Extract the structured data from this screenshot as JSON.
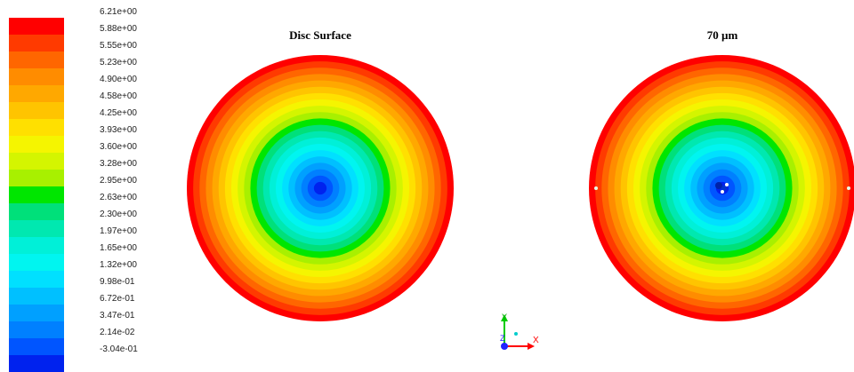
{
  "legend": {
    "labels": [
      "6.21e+00",
      "5.88e+00",
      "5.55e+00",
      "5.23e+00",
      "4.90e+00",
      "4.58e+00",
      "4.25e+00",
      "3.93e+00",
      "3.60e+00",
      "3.28e+00",
      "2.95e+00",
      "2.63e+00",
      "2.30e+00",
      "1.97e+00",
      "1.65e+00",
      "1.32e+00",
      "9.98e-01",
      "6.72e-01",
      "3.47e-01",
      "2.14e-02",
      "-3.04e-01"
    ],
    "colors": [
      "#ff0000",
      "#ff3a00",
      "#ff6600",
      "#ff8c00",
      "#ffa800",
      "#ffc400",
      "#ffe000",
      "#f5f500",
      "#d4f500",
      "#a8f000",
      "#00e600",
      "#00e07a",
      "#00e8b0",
      "#00f0d8",
      "#00f5f0",
      "#00e0ff",
      "#00c0ff",
      "#00a0ff",
      "#0080ff",
      "#0055ff",
      "#0022ee"
    ]
  },
  "plots": [
    {
      "title": "Disc Surface"
    },
    {
      "title": "70 µm"
    }
  ],
  "axes": {
    "y_label": "Y",
    "z_label": "Z",
    "x_label": "X",
    "y_color": "#00cc00",
    "z_color": "#2222ff",
    "x_color": "#ff0000"
  }
}
